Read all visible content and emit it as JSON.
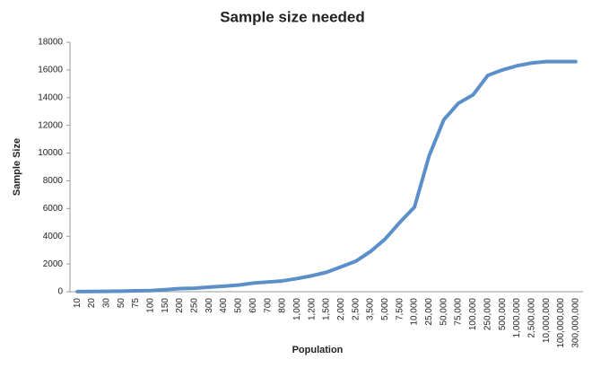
{
  "chart_data": {
    "type": "line",
    "title": "Sample size needed",
    "x_label": "Population",
    "y_label": "Sample Size",
    "categories": [
      "10",
      "20",
      "30",
      "50",
      "75",
      "100",
      "150",
      "200",
      "250",
      "300",
      "400",
      "500",
      "600",
      "700",
      "800",
      "1,000",
      "1,200",
      "1,500",
      "2,000",
      "2,500",
      "3,500",
      "5,000",
      "7,500",
      "10,000",
      "25,000",
      "50,000",
      "75,000",
      "100,000",
      "250,000",
      "500,000",
      "1,000,000",
      "2,500,000",
      "10,000,000",
      "100,000,000",
      "300,000,000"
    ],
    "series": [
      {
        "name": "Sample Size",
        "color": "#5b8fc9",
        "values": [
          10,
          19,
          28,
          44,
          63,
          80,
          150,
          230,
          250,
          330,
          400,
          480,
          620,
          700,
          780,
          950,
          1150,
          1400,
          1800,
          2200,
          2900,
          3800,
          5000,
          6100,
          9800,
          12400,
          13600,
          14200,
          15600,
          16000,
          16300,
          16500,
          16600,
          16600,
          16600
        ]
      }
    ],
    "ylim": [
      0,
      18000
    ],
    "yticks": [
      0,
      2000,
      4000,
      6000,
      8000,
      10000,
      12000,
      14000,
      16000,
      18000
    ],
    "grid": false
  }
}
